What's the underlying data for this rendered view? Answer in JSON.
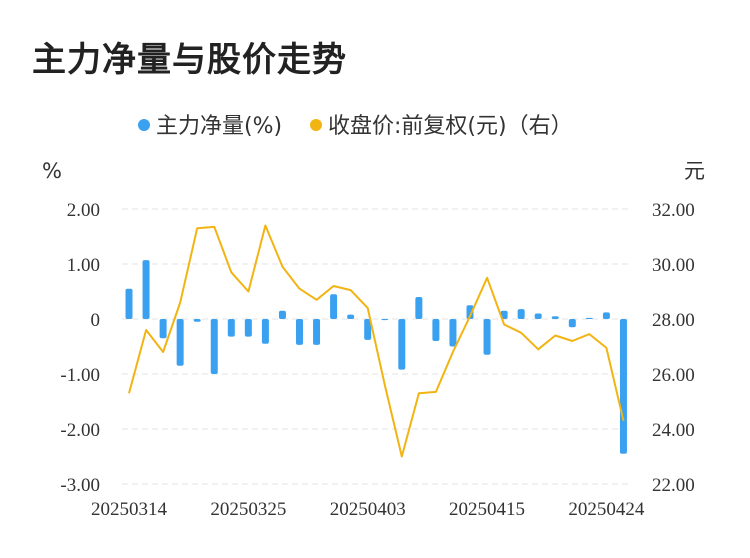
{
  "title": "主力净量与股价走势",
  "chart_data": {
    "type": "bar+line",
    "legend": {
      "bar_label": "主力净量(%)",
      "line_label": "收盘价:前复权(元)（右）",
      "placement": "top-center"
    },
    "left_axis": {
      "unit": "%",
      "min": -3,
      "max": 2,
      "ticks": [
        2,
        1,
        0,
        -1,
        -2,
        -3
      ],
      "tick_labels": [
        "2.00",
        "1.00",
        "0",
        "-1.00",
        "-2.00",
        "-3.00"
      ]
    },
    "right_axis": {
      "unit": "元",
      "min": 22,
      "max": 32,
      "ticks": [
        32,
        30,
        28,
        26,
        24,
        22
      ],
      "tick_labels": [
        "32.00",
        "30.00",
        "28.00",
        "26.00",
        "24.00",
        "22.00"
      ]
    },
    "x_tick_labels": [
      "20250314",
      "20250325",
      "20250403",
      "20250415",
      "20250424"
    ],
    "x_tick_index": [
      0,
      7,
      14,
      21,
      28
    ],
    "grid": "horizontal-dashed",
    "colors": {
      "bar": "#3aa0f0",
      "line": "#f2b413",
      "grid": "#e3e3e3"
    },
    "bar_values": [
      0.55,
      1.07,
      -0.35,
      -0.85,
      -0.05,
      -1.0,
      -0.32,
      -0.32,
      -0.45,
      0.15,
      -0.47,
      -0.47,
      0.45,
      0.08,
      -0.38,
      -0.02,
      -0.92,
      0.4,
      -0.4,
      -0.5,
      0.25,
      -0.65,
      0.15,
      0.18,
      0.1,
      0.05,
      -0.15,
      0.02,
      0.12,
      -2.45
    ],
    "line_values": [
      25.3,
      27.6,
      26.8,
      28.6,
      31.3,
      31.35,
      29.7,
      29.0,
      31.4,
      29.9,
      29.1,
      28.7,
      29.2,
      29.05,
      28.4,
      25.6,
      23.0,
      25.3,
      25.35,
      26.8,
      28.1,
      29.5,
      27.8,
      27.5,
      26.9,
      27.4,
      27.2,
      27.45,
      26.95,
      24.3
    ]
  }
}
